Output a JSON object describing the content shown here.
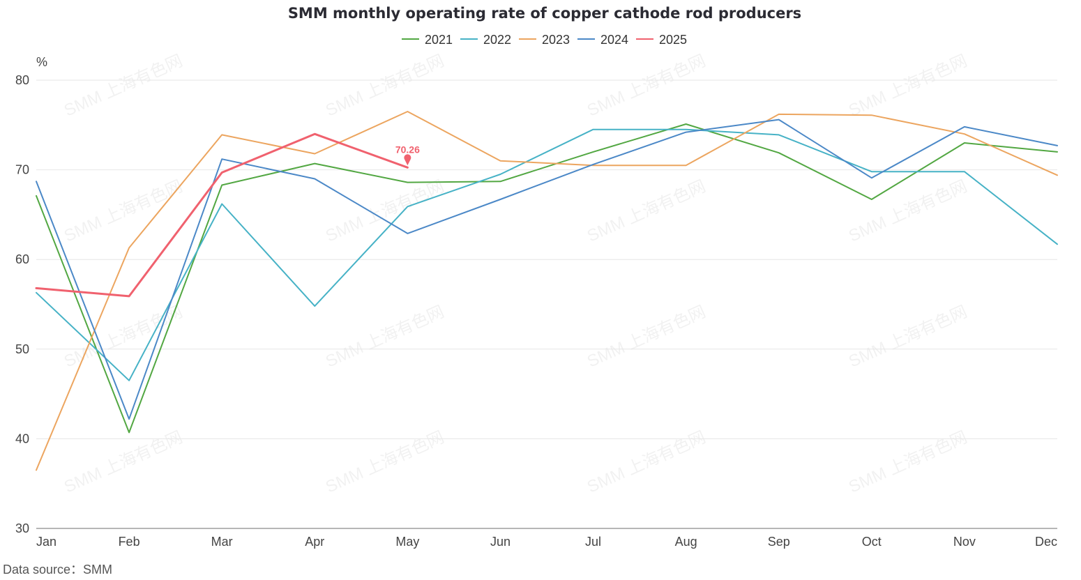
{
  "chart_data": {
    "type": "line",
    "title": "SMM monthly operating rate of copper cathode rod producers",
    "ylabel": "%",
    "xlabel": "",
    "categories": [
      "Jan",
      "Feb",
      "Mar",
      "Apr",
      "May",
      "Jun",
      "Jul",
      "Aug",
      "Sep",
      "Oct",
      "Nov",
      "Dec"
    ],
    "ylim": [
      30,
      80
    ],
    "yticks": [
      30,
      40,
      50,
      60,
      70,
      80
    ],
    "grid": true,
    "legend_position": "top-center",
    "series": [
      {
        "name": "2021",
        "color": "#52a742",
        "values": [
          67.1,
          40.7,
          68.3,
          70.7,
          68.6,
          68.7,
          72.0,
          75.1,
          71.9,
          66.7,
          73.0,
          72.0
        ]
      },
      {
        "name": "2022",
        "color": "#46b2c6",
        "values": [
          56.3,
          46.5,
          66.2,
          54.8,
          65.9,
          69.5,
          74.5,
          74.5,
          73.9,
          69.8,
          69.8,
          61.7
        ]
      },
      {
        "name": "2023",
        "color": "#eca55f",
        "values": [
          36.5,
          61.3,
          73.9,
          71.8,
          76.5,
          71.0,
          70.5,
          70.5,
          76.2,
          76.1,
          74.0,
          69.4
        ]
      },
      {
        "name": "2024",
        "color": "#4b88c7",
        "values": [
          68.7,
          42.2,
          71.2,
          69.0,
          62.9,
          66.7,
          70.6,
          74.2,
          75.6,
          69.1,
          74.8,
          72.7
        ]
      },
      {
        "name": "2025",
        "color": "#f0616e",
        "values": [
          56.8,
          55.9,
          69.7,
          74.0,
          70.26,
          null,
          null,
          null,
          null,
          null,
          null,
          null
        ],
        "bold": true
      }
    ],
    "annotations": [
      {
        "series": "2025",
        "category": "May",
        "text": "70.26"
      }
    ],
    "source": "Data source：SMM",
    "watermark": "SMM 上海有色网"
  }
}
